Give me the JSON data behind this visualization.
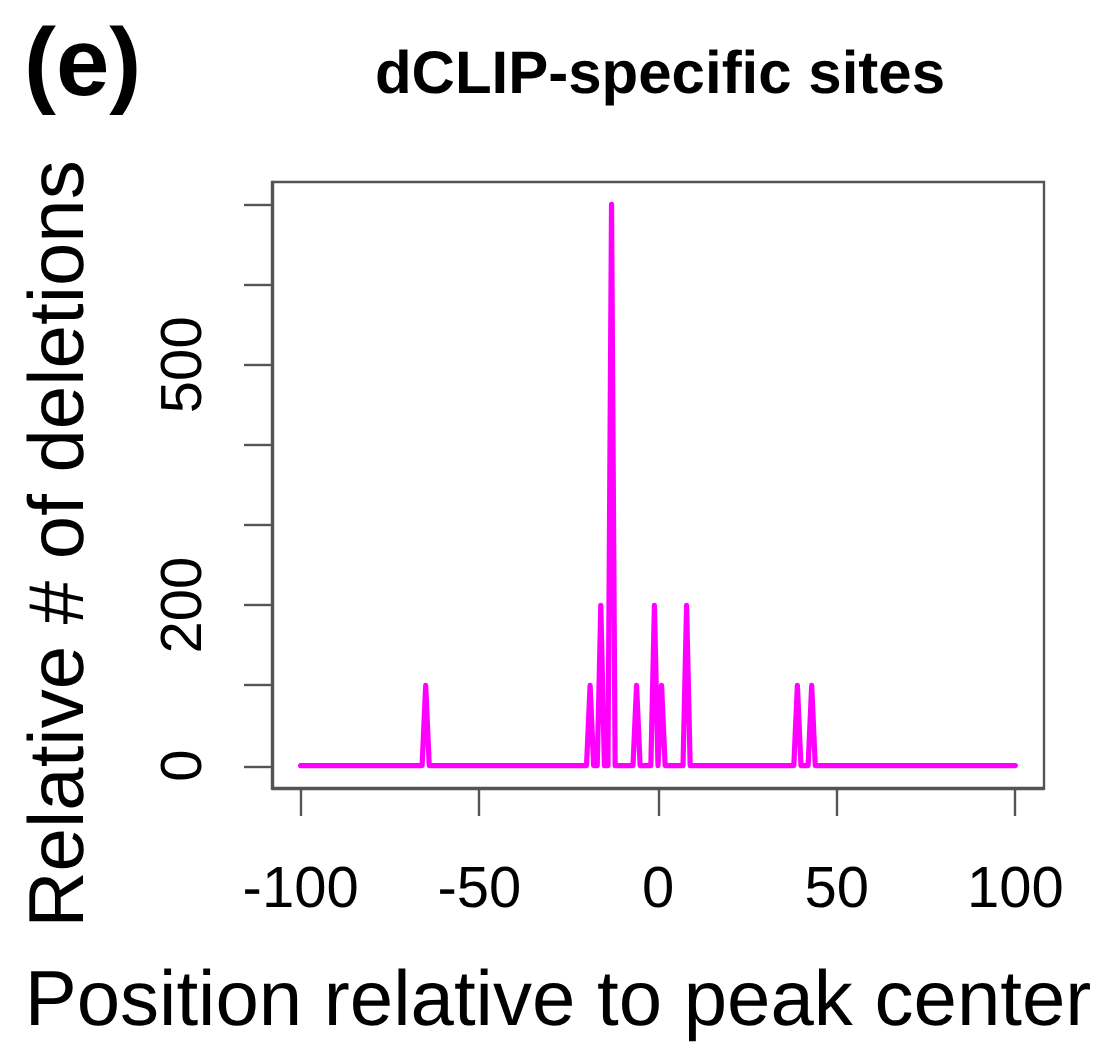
{
  "chart_data": {
    "type": "line",
    "title": "dCLIP-specific sites",
    "xlabel": "Position relative to peak center",
    "ylabel": "Relative # of deletions",
    "annotations": [
      "(e)"
    ],
    "x": [
      -100,
      -66,
      -65,
      -64,
      -20,
      -19,
      -18,
      -17,
      -16,
      -15,
      -14,
      -13,
      -12,
      -7,
      -6,
      -5,
      -2,
      -1,
      0,
      1,
      2,
      7,
      8,
      9,
      38,
      39,
      40,
      42,
      43,
      44,
      100
    ],
    "values": [
      0,
      0,
      100,
      0,
      0,
      100,
      0,
      0,
      200,
      0,
      0,
      700,
      0,
      0,
      100,
      0,
      0,
      200,
      0,
      100,
      0,
      0,
      200,
      0,
      0,
      100,
      0,
      0,
      100,
      0,
      0
    ],
    "color": "#ff00ff",
    "xlim": [
      -108,
      108
    ],
    "xticks": [
      -100,
      -50,
      0,
      50,
      100
    ],
    "ylim": [
      -28,
      728
    ],
    "yticks": [
      0,
      {
        "value": 100,
        "label": null
      },
      200,
      {
        "value": 300,
        "label": null
      },
      {
        "value": 400,
        "label": null
      },
      500,
      {
        "value": 600,
        "label": null
      },
      {
        "value": 700,
        "label": null
      }
    ],
    "grid": false,
    "line_style": "solid"
  }
}
